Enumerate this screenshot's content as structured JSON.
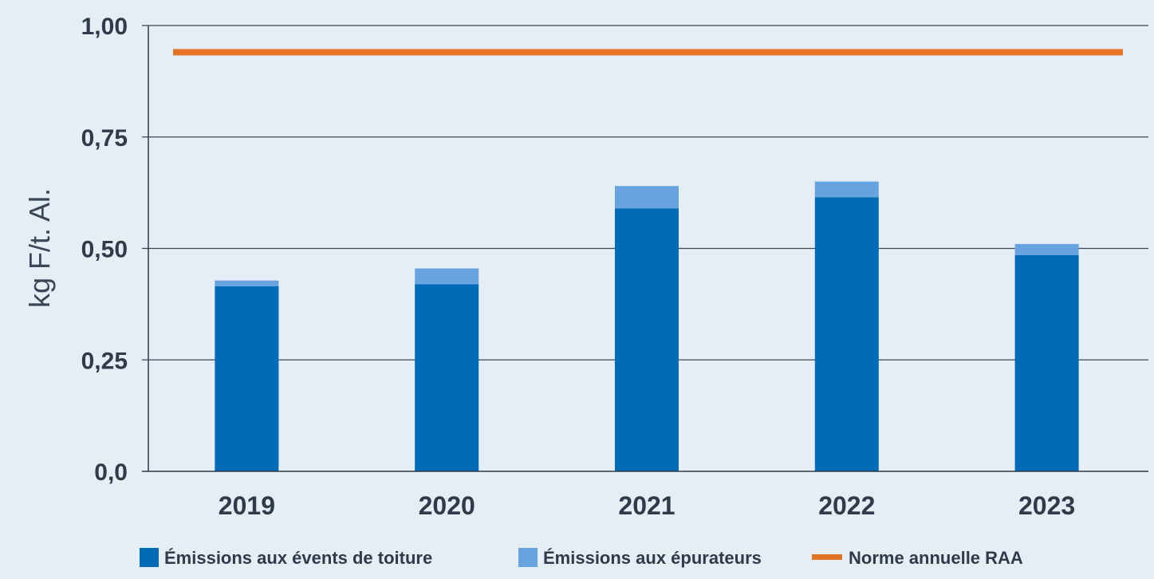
{
  "chart_data": {
    "type": "bar",
    "stacked": true,
    "categories": [
      "2019",
      "2020",
      "2021",
      "2022",
      "2023"
    ],
    "series": [
      {
        "name": "Émissions aux évents de toiture",
        "values": [
          0.415,
          0.42,
          0.59,
          0.615,
          0.485
        ],
        "color": "#006bb6"
      },
      {
        "name": "Émissions aux épurateurs",
        "values": [
          0.013,
          0.035,
          0.05,
          0.035,
          0.025
        ],
        "color": "#67a4df"
      }
    ],
    "reference_line": {
      "name": "Norme annuelle RAA",
      "value": 0.94,
      "color": "#e47326"
    },
    "ylabel": "kg F/t. Al.",
    "ylim": [
      0,
      1.0
    ],
    "yticks": [
      0.0,
      0.25,
      0.5,
      0.75,
      1.0
    ],
    "ytick_labels": [
      "0,0",
      "0,25",
      "0,50",
      "0,75",
      "1,00"
    ],
    "grid": true,
    "legend_position": "bottom"
  },
  "colors": {
    "background": "#e5edf5",
    "axis": "#2f3b4a",
    "grid": "#3a4757"
  }
}
